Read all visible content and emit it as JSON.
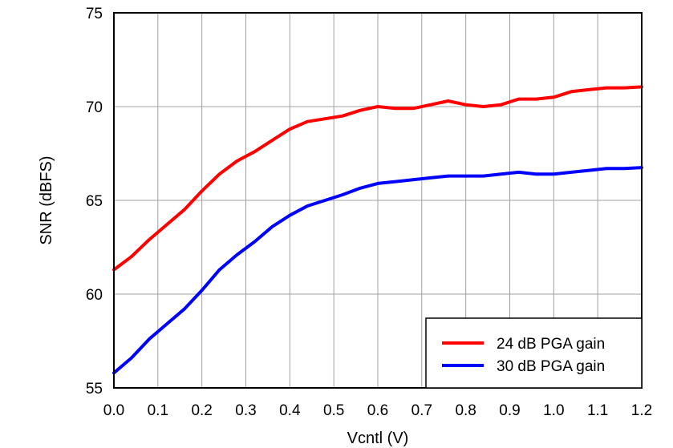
{
  "chart_data": {
    "type": "line",
    "xlabel": "Vcntl (V)",
    "ylabel": "SNR (dBFS)",
    "xlim": [
      0,
      1.2
    ],
    "ylim": [
      55,
      75
    ],
    "xticks": [
      "0.0",
      "0.1",
      "0.2",
      "0.3",
      "0.4",
      "0.5",
      "0.6",
      "0.7",
      "0.8",
      "0.9",
      "1.0",
      "1.1",
      "1.2"
    ],
    "yticks": [
      "55",
      "60",
      "65",
      "70",
      "75"
    ],
    "grid": true,
    "legend_position": "bottom-right",
    "series": [
      {
        "name": "24 dB PGA gain",
        "color": "#ff0000",
        "x": [
          0.0,
          0.04,
          0.08,
          0.12,
          0.16,
          0.2,
          0.24,
          0.28,
          0.32,
          0.36,
          0.4,
          0.44,
          0.48,
          0.52,
          0.56,
          0.6,
          0.64,
          0.68,
          0.72,
          0.76,
          0.8,
          0.84,
          0.88,
          0.92,
          0.96,
          1.0,
          1.04,
          1.08,
          1.12,
          1.16,
          1.2
        ],
        "y": [
          61.3,
          62.0,
          62.9,
          63.7,
          64.5,
          65.5,
          66.4,
          67.1,
          67.6,
          68.2,
          68.8,
          69.2,
          69.35,
          69.5,
          69.8,
          70.0,
          69.9,
          69.9,
          70.1,
          70.3,
          70.1,
          70.0,
          70.1,
          70.4,
          70.4,
          70.5,
          70.8,
          70.9,
          71.0,
          71.0,
          71.05
        ]
      },
      {
        "name": "30 dB PGA gain",
        "color": "#0000ff",
        "x": [
          0.0,
          0.04,
          0.08,
          0.12,
          0.16,
          0.2,
          0.24,
          0.28,
          0.32,
          0.36,
          0.4,
          0.44,
          0.48,
          0.52,
          0.56,
          0.6,
          0.64,
          0.68,
          0.72,
          0.76,
          0.8,
          0.84,
          0.88,
          0.92,
          0.96,
          1.0,
          1.04,
          1.08,
          1.12,
          1.16,
          1.2
        ],
        "y": [
          55.8,
          56.6,
          57.6,
          58.4,
          59.2,
          60.2,
          61.3,
          62.1,
          62.8,
          63.6,
          64.2,
          64.7,
          65.0,
          65.3,
          65.65,
          65.9,
          66.0,
          66.1,
          66.2,
          66.3,
          66.3,
          66.3,
          66.4,
          66.5,
          66.4,
          66.4,
          66.5,
          66.6,
          66.7,
          66.7,
          66.75
        ]
      }
    ]
  }
}
